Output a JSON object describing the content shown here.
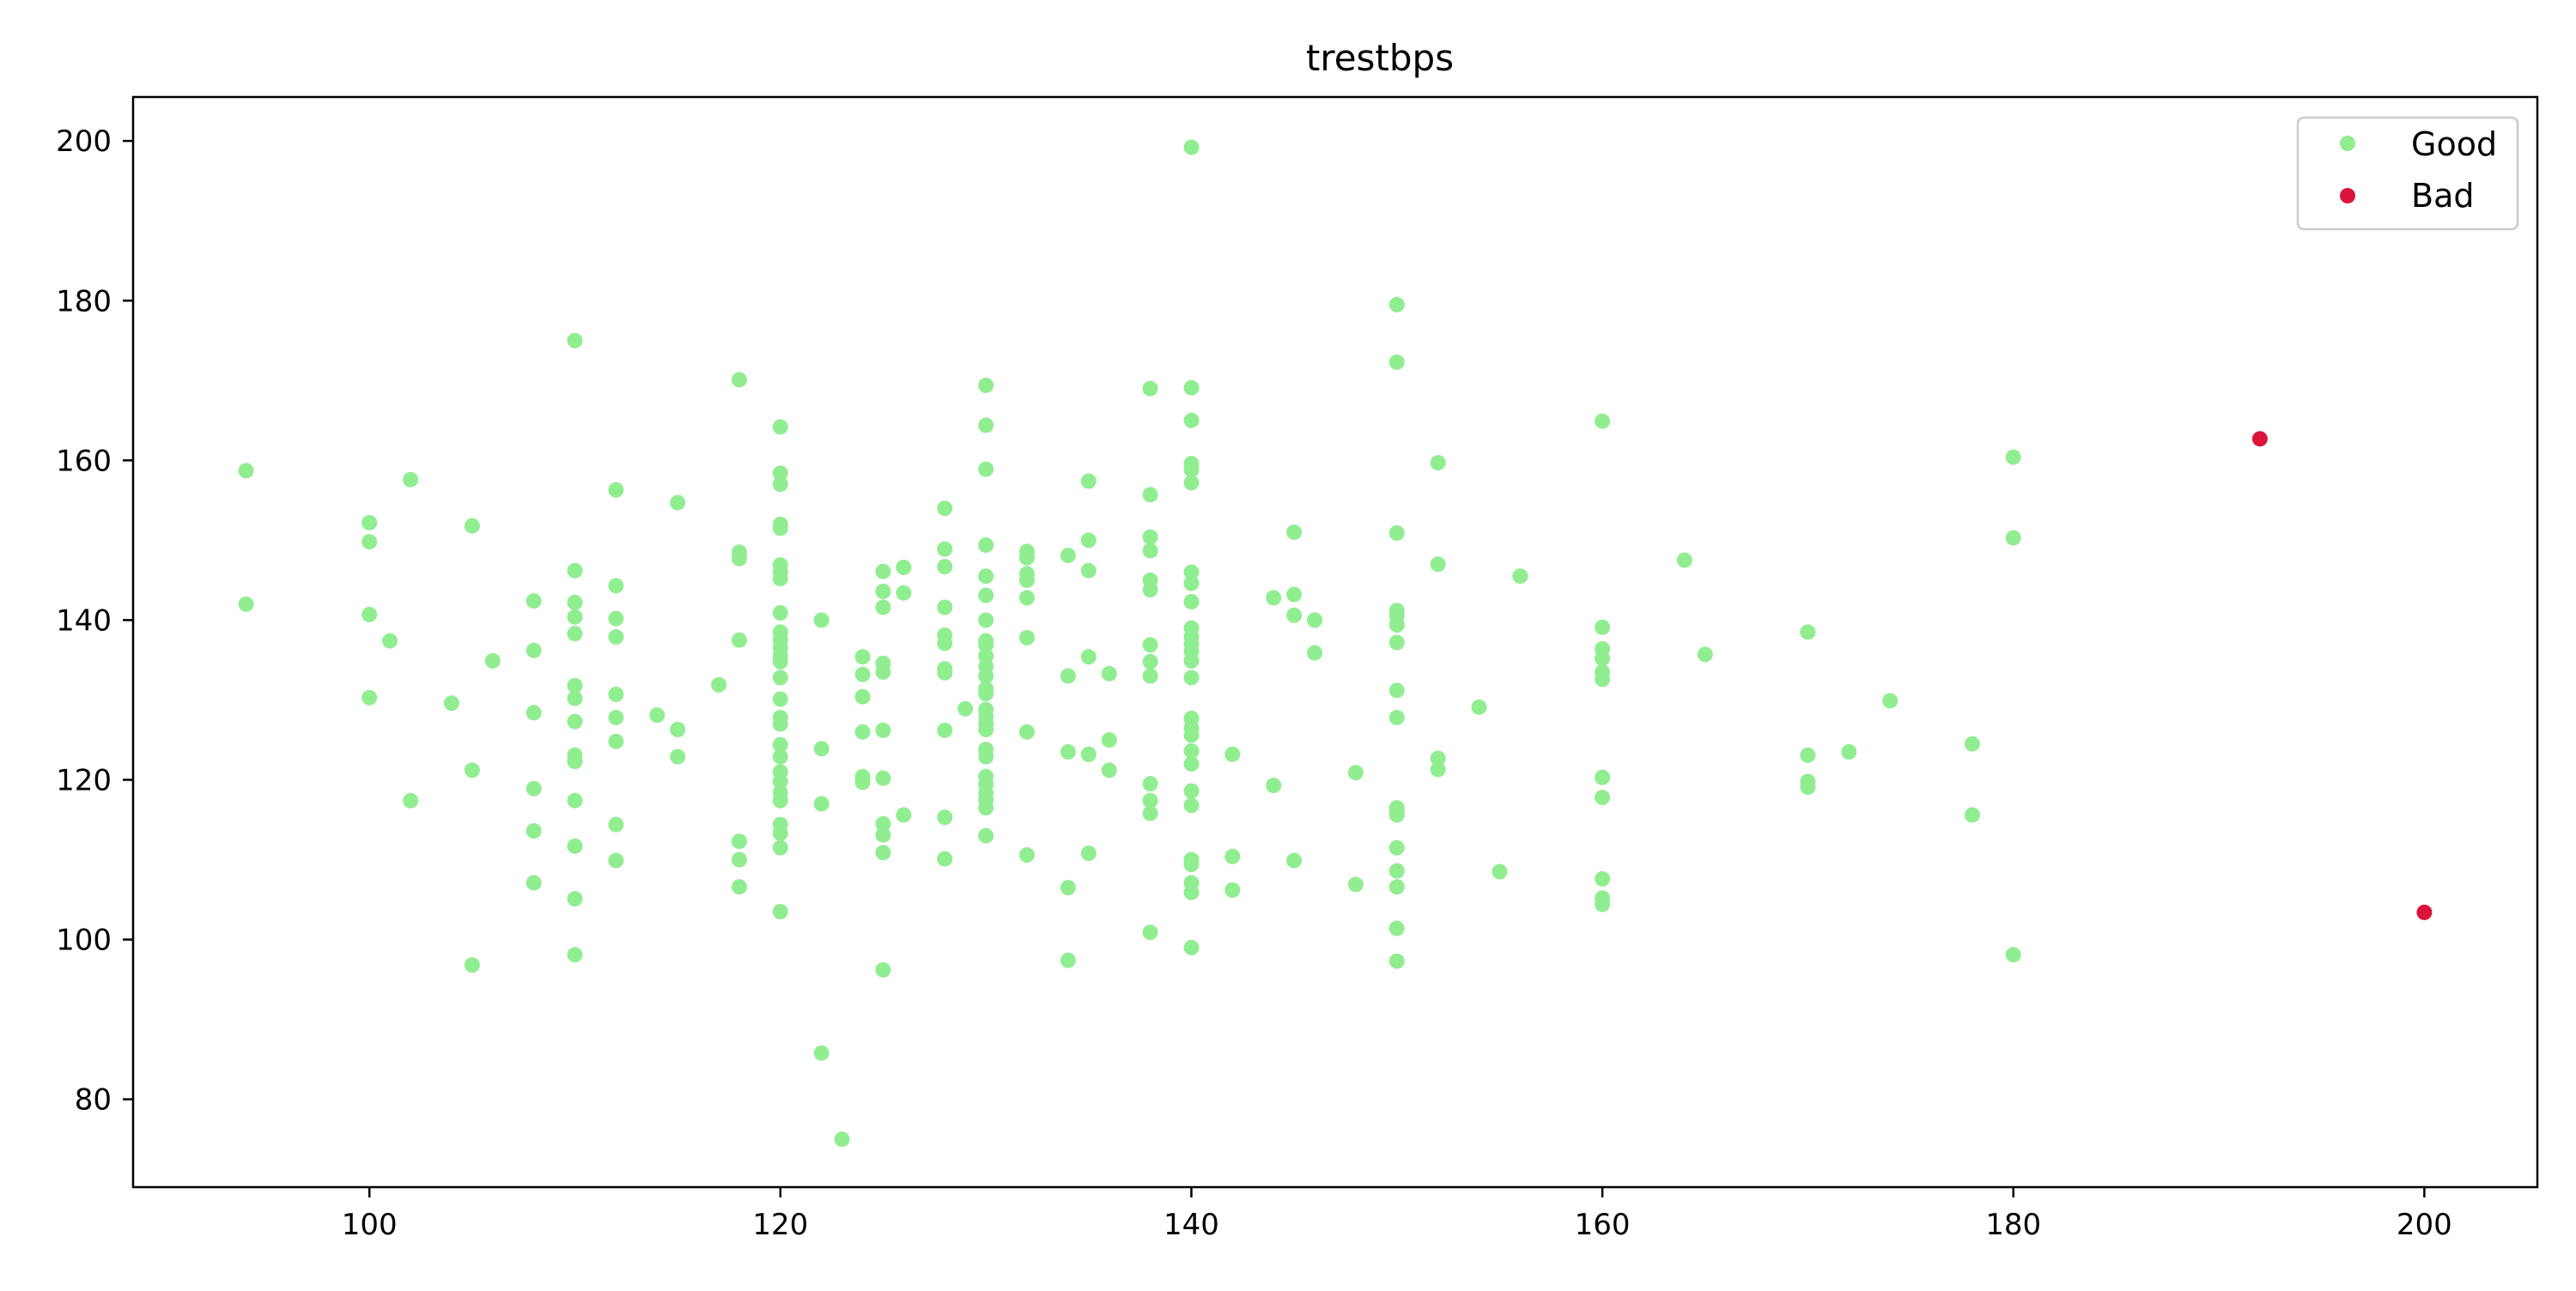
{
  "chart_data": {
    "type": "scatter",
    "title": "trestbps",
    "xlabel": "",
    "ylabel": "",
    "xlim": [
      88.5,
      205.5
    ],
    "ylim": [
      69,
      205.5
    ],
    "x_ticks": [
      100,
      120,
      140,
      160,
      180,
      200
    ],
    "y_ticks": [
      80,
      100,
      120,
      140,
      160,
      180,
      200
    ],
    "grid": false,
    "legend": "top-right",
    "series": [
      {
        "name": "Good",
        "color": "#90ee90",
        "points": [
          [
            94,
            158.7
          ],
          [
            94,
            142
          ],
          [
            100,
            152.2
          ],
          [
            100,
            149.8
          ],
          [
            100,
            140.7
          ],
          [
            100,
            130.3
          ],
          [
            101,
            137.4
          ],
          [
            102,
            157.6
          ],
          [
            102,
            117.4
          ],
          [
            104,
            129.6
          ],
          [
            105,
            151.8
          ],
          [
            105,
            121.2
          ],
          [
            105,
            96.8
          ],
          [
            106,
            134.9
          ],
          [
            108,
            142.4
          ],
          [
            108,
            136.2
          ],
          [
            108,
            128.4
          ],
          [
            108,
            118.9
          ],
          [
            108,
            113.6
          ],
          [
            108,
            107.1
          ],
          [
            110,
            175
          ],
          [
            110,
            146.2
          ],
          [
            110,
            142.2
          ],
          [
            110,
            140.4
          ],
          [
            110,
            138.3
          ],
          [
            110,
            131.8
          ],
          [
            110,
            130.2
          ],
          [
            110,
            127.3
          ],
          [
            110,
            123.1
          ],
          [
            110,
            122.3
          ],
          [
            110,
            117.4
          ],
          [
            110,
            111.7
          ],
          [
            110,
            105.1
          ],
          [
            110,
            98.1
          ],
          [
            112,
            156.3
          ],
          [
            112,
            144.3
          ],
          [
            112,
            140.2
          ],
          [
            112,
            137.9
          ],
          [
            112,
            130.7
          ],
          [
            112,
            127.8
          ],
          [
            112,
            124.8
          ],
          [
            112,
            114.4
          ],
          [
            112,
            109.9
          ],
          [
            114,
            128.1
          ],
          [
            115,
            154.7
          ],
          [
            115,
            126.3
          ],
          [
            115,
            122.9
          ],
          [
            117,
            131.9
          ],
          [
            118,
            170.1
          ],
          [
            118,
            148.5
          ],
          [
            118,
            147.7
          ],
          [
            118,
            137.5
          ],
          [
            118,
            112.3
          ],
          [
            118,
            110
          ],
          [
            118,
            106.6
          ],
          [
            120,
            164.2
          ],
          [
            120,
            158.4
          ],
          [
            120,
            157
          ],
          [
            120,
            152
          ],
          [
            120,
            151.5
          ],
          [
            120,
            146.9
          ],
          [
            120,
            146
          ],
          [
            120,
            145.2
          ],
          [
            120,
            140.9
          ],
          [
            120,
            138.5
          ],
          [
            120,
            137.6
          ],
          [
            120,
            136.6
          ],
          [
            120,
            135.6
          ],
          [
            120,
            134.8
          ],
          [
            120,
            132.8
          ],
          [
            120,
            130.1
          ],
          [
            120,
            127.8
          ],
          [
            120,
            127
          ],
          [
            120,
            124.4
          ],
          [
            120,
            122.9
          ],
          [
            120,
            121
          ],
          [
            120,
            119.8
          ],
          [
            120,
            118.4
          ],
          [
            120,
            117.4
          ],
          [
            120,
            114.4
          ],
          [
            120,
            113.3
          ],
          [
            120,
            111.5
          ],
          [
            120,
            103.5
          ],
          [
            122,
            140
          ],
          [
            122,
            123.9
          ],
          [
            122,
            117
          ],
          [
            122,
            85.8
          ],
          [
            123,
            75
          ],
          [
            124,
            135.4
          ],
          [
            124,
            133.2
          ],
          [
            124,
            130.4
          ],
          [
            124,
            126
          ],
          [
            124,
            120.4
          ],
          [
            124,
            119.7
          ],
          [
            125,
            146.1
          ],
          [
            125,
            143.6
          ],
          [
            125,
            141.6
          ],
          [
            125,
            134.6
          ],
          [
            125,
            133.5
          ],
          [
            125,
            126.2
          ],
          [
            125,
            120.2
          ],
          [
            125,
            114.5
          ],
          [
            125,
            113.1
          ],
          [
            125,
            110.9
          ],
          [
            125,
            96.2
          ],
          [
            126,
            146.6
          ],
          [
            126,
            143.4
          ],
          [
            126,
            115.6
          ],
          [
            128,
            154
          ],
          [
            128,
            148.9
          ],
          [
            128,
            146.7
          ],
          [
            128,
            141.6
          ],
          [
            128,
            138.1
          ],
          [
            128,
            137.1
          ],
          [
            128,
            133.9
          ],
          [
            128,
            133.4
          ],
          [
            128,
            126.2
          ],
          [
            128,
            115.3
          ],
          [
            128,
            110.1
          ],
          [
            129,
            128.9
          ],
          [
            130,
            169.4
          ],
          [
            130,
            164.4
          ],
          [
            130,
            158.9
          ],
          [
            130,
            149.4
          ],
          [
            130,
            145.5
          ],
          [
            130,
            143.1
          ],
          [
            130,
            140
          ],
          [
            130,
            137.4
          ],
          [
            130,
            136.9
          ],
          [
            130,
            135.5
          ],
          [
            130,
            134.2
          ],
          [
            130,
            133
          ],
          [
            130,
            131.4
          ],
          [
            130,
            130.8
          ],
          [
            130,
            128.8
          ],
          [
            130,
            127.9
          ],
          [
            130,
            127
          ],
          [
            130,
            126.3
          ],
          [
            130,
            123.8
          ],
          [
            130,
            122.9
          ],
          [
            130,
            120.4
          ],
          [
            130,
            119.4
          ],
          [
            130,
            118.3
          ],
          [
            130,
            117.5
          ],
          [
            130,
            116.5
          ],
          [
            130,
            113
          ],
          [
            132,
            148.6
          ],
          [
            132,
            147.8
          ],
          [
            132,
            145.8
          ],
          [
            132,
            145
          ],
          [
            132,
            142.8
          ],
          [
            132,
            137.8
          ],
          [
            132,
            126
          ],
          [
            132,
            110.6
          ],
          [
            134,
            148.1
          ],
          [
            134,
            133
          ],
          [
            134,
            123.5
          ],
          [
            134,
            106.5
          ],
          [
            134,
            97.4
          ],
          [
            135,
            157.4
          ],
          [
            135,
            150
          ],
          [
            135,
            146.2
          ],
          [
            135,
            135.4
          ],
          [
            135,
            123.2
          ],
          [
            135,
            110.8
          ],
          [
            136,
            133.3
          ],
          [
            136,
            125
          ],
          [
            136,
            121.2
          ],
          [
            138,
            169
          ],
          [
            138,
            155.7
          ],
          [
            138,
            150.4
          ],
          [
            138,
            148.7
          ],
          [
            138,
            145
          ],
          [
            138,
            143.8
          ],
          [
            138,
            136.9
          ],
          [
            138,
            134.8
          ],
          [
            138,
            133
          ],
          [
            138,
            119.5
          ],
          [
            138,
            117.4
          ],
          [
            138,
            115.8
          ],
          [
            138,
            100.9
          ],
          [
            140,
            199.2
          ],
          [
            140,
            169.1
          ],
          [
            140,
            165
          ],
          [
            140,
            159.6
          ],
          [
            140,
            158.8
          ],
          [
            140,
            157.2
          ],
          [
            140,
            146
          ],
          [
            140,
            144.6
          ],
          [
            140,
            142.3
          ],
          [
            140,
            139
          ],
          [
            140,
            137.9
          ],
          [
            140,
            137
          ],
          [
            140,
            136.1
          ],
          [
            140,
            134.9
          ],
          [
            140,
            132.8
          ],
          [
            140,
            127.7
          ],
          [
            140,
            126.5
          ],
          [
            140,
            125.6
          ],
          [
            140,
            123.6
          ],
          [
            140,
            122
          ],
          [
            140,
            118.6
          ],
          [
            140,
            116.8
          ],
          [
            140,
            110
          ],
          [
            140,
            109.4
          ],
          [
            140,
            107.1
          ],
          [
            140,
            105.9
          ],
          [
            140,
            99
          ],
          [
            142,
            123.2
          ],
          [
            142,
            110.4
          ],
          [
            142,
            106.2
          ],
          [
            144,
            142.8
          ],
          [
            144,
            119.3
          ],
          [
            145,
            151
          ],
          [
            145,
            143.2
          ],
          [
            145,
            140.6
          ],
          [
            145,
            109.9
          ],
          [
            146,
            140
          ],
          [
            146,
            135.9
          ],
          [
            148,
            120.9
          ],
          [
            148,
            106.9
          ],
          [
            150,
            179.5
          ],
          [
            150,
            172.3
          ],
          [
            150,
            150.9
          ],
          [
            150,
            141.2
          ],
          [
            150,
            140.5
          ],
          [
            150,
            139.4
          ],
          [
            150,
            137.2
          ],
          [
            150,
            131.2
          ],
          [
            150,
            127.8
          ],
          [
            150,
            116.5
          ],
          [
            150,
            116
          ],
          [
            150,
            115.6
          ],
          [
            150,
            111.5
          ],
          [
            150,
            108.6
          ],
          [
            150,
            106.6
          ],
          [
            150,
            101.4
          ],
          [
            150,
            97.3
          ],
          [
            152,
            159.7
          ],
          [
            152,
            147
          ],
          [
            152,
            122.7
          ],
          [
            152,
            121.3
          ],
          [
            154,
            129.1
          ],
          [
            155,
            108.5
          ],
          [
            156,
            145.5
          ],
          [
            160,
            164.9
          ],
          [
            160,
            139.1
          ],
          [
            160,
            136.4
          ],
          [
            160,
            135.2
          ],
          [
            160,
            133.5
          ],
          [
            160,
            132.6
          ],
          [
            160,
            120.3
          ],
          [
            160,
            117.8
          ],
          [
            160,
            107.6
          ],
          [
            160,
            105.2
          ],
          [
            160,
            104.4
          ],
          [
            164,
            147.5
          ],
          [
            165,
            135.7
          ],
          [
            170,
            138.5
          ],
          [
            170,
            123.1
          ],
          [
            170,
            119.8
          ],
          [
            170,
            119.1
          ],
          [
            172,
            123.5
          ],
          [
            174,
            129.9
          ],
          [
            178,
            124.5
          ],
          [
            178,
            115.6
          ],
          [
            180,
            160.4
          ],
          [
            180,
            150.3
          ],
          [
            180,
            98.1
          ]
        ]
      },
      {
        "name": "Bad",
        "color": "#dc143c",
        "points": [
          [
            192,
            162.7
          ],
          [
            200,
            103.4
          ]
        ]
      }
    ]
  }
}
